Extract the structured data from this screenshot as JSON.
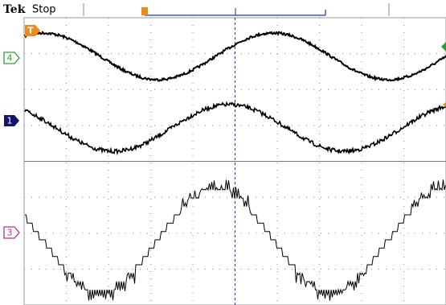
{
  "header": {
    "brand": "Tek",
    "status": "Stop"
  },
  "trigger_marker": "T",
  "channels": [
    {
      "label": "4"
    },
    {
      "label": "1"
    },
    {
      "label": "3"
    }
  ]
}
